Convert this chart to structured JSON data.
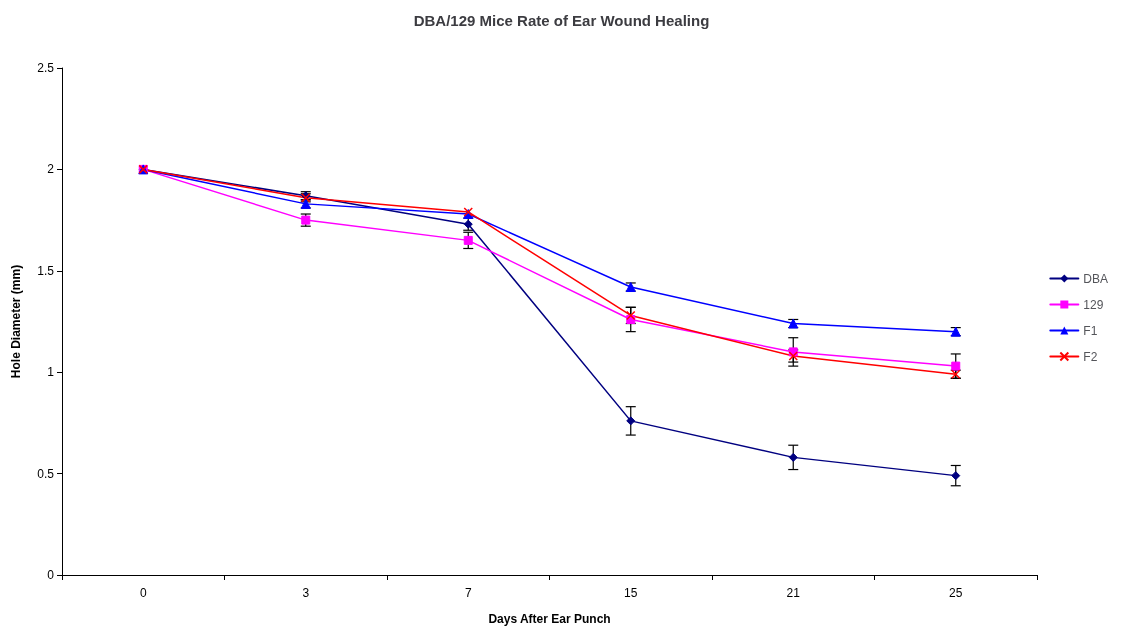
{
  "chart_data": {
    "type": "line",
    "title": "DBA/129 Mice Rate of Ear Wound Healing",
    "xlabel": "Days After Ear Punch",
    "ylabel": "Hole Diameter (mm)",
    "categories": [
      "0",
      "3",
      "7",
      "15",
      "21",
      "25"
    ],
    "ylim": [
      0,
      2.5
    ],
    "yticks": [
      0,
      0.5,
      1,
      1.5,
      2,
      2.5
    ],
    "grid": false,
    "legend": "right",
    "line_style": "solid",
    "series": [
      {
        "name": "DBA",
        "color": "#000080",
        "marker": "diamond",
        "values": [
          2.0,
          1.87,
          1.73,
          0.76,
          0.58,
          0.49
        ],
        "errors": [
          null,
          0.02,
          0.03,
          0.07,
          0.06,
          0.05
        ]
      },
      {
        "name": "129",
        "color": "#ff00ff",
        "marker": "square",
        "values": [
          2.0,
          1.75,
          1.65,
          1.26,
          1.1,
          1.03
        ],
        "errors": [
          null,
          0.03,
          0.04,
          0.06,
          0.07,
          0.06
        ]
      },
      {
        "name": "F1",
        "color": "#0000ff",
        "marker": "triangle",
        "values": [
          2.0,
          1.83,
          1.78,
          1.42,
          1.24,
          1.2
        ],
        "errors": [
          null,
          0.02,
          null,
          0.02,
          0.02,
          0.02
        ]
      },
      {
        "name": "F2",
        "color": "#ff0000",
        "marker": "cross",
        "values": [
          2.0,
          1.86,
          1.79,
          1.28,
          1.08,
          0.99
        ],
        "errors": [
          null,
          0.02,
          null,
          0.04,
          0.03,
          0.02
        ]
      }
    ]
  }
}
